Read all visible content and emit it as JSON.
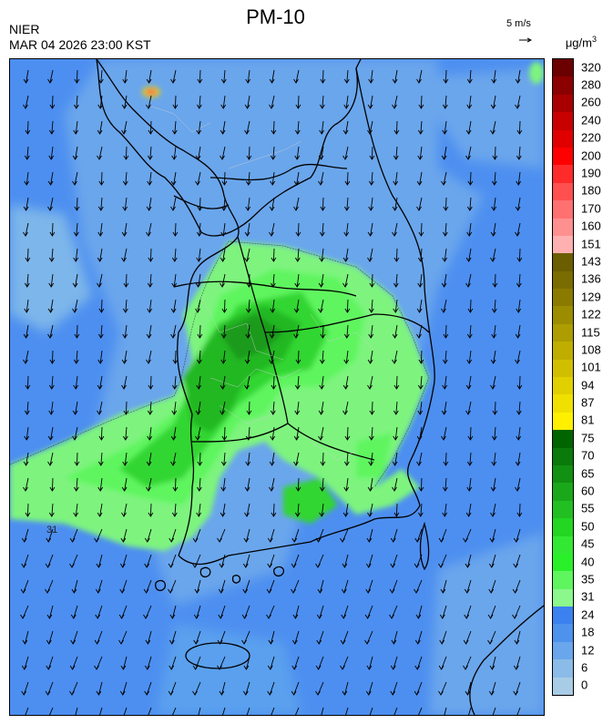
{
  "header": {
    "agency": "NIER",
    "datetime": "MAR 04 2026 23:00 KST",
    "title": "PM-10",
    "vector_scale_label": "5 m/s",
    "unit_base": "μg/m",
    "unit_sup": "3"
  },
  "map": {
    "contour_label": "31",
    "wind_direction": "north-northeasterly (arrows pointing south)",
    "colors": {
      "ocean_low": "#5aa0ee",
      "ocean_mid": "#4d8ff0",
      "land_low": "#7db6ea",
      "haze_light_green": "#7ef47e",
      "haze_green": "#33d633",
      "haze_dark_green": "#1ea31e",
      "border_line": "#000000"
    }
  },
  "legend": {
    "levels": [
      {
        "label": "320",
        "color": "#6b0000"
      },
      {
        "label": "280",
        "color": "#8b0000"
      },
      {
        "label": "260",
        "color": "#a80000"
      },
      {
        "label": "240",
        "color": "#c80000"
      },
      {
        "label": "220",
        "color": "#e00000"
      },
      {
        "label": "200",
        "color": "#ff0000"
      },
      {
        "label": "190",
        "color": "#ff2a2a"
      },
      {
        "label": "180",
        "color": "#ff5050"
      },
      {
        "label": "170",
        "color": "#ff7070"
      },
      {
        "label": "160",
        "color": "#ff9090"
      },
      {
        "label": "151",
        "color": "#ffb0b0"
      },
      {
        "label": "143",
        "color": "#6b5e00"
      },
      {
        "label": "136",
        "color": "#7a6c00"
      },
      {
        "label": "129",
        "color": "#8a7b00"
      },
      {
        "label": "122",
        "color": "#9c8c00"
      },
      {
        "label": "115",
        "color": "#ad9d00"
      },
      {
        "label": "108",
        "color": "#bfae00"
      },
      {
        "label": "101",
        "color": "#d0bf00"
      },
      {
        "label": "94",
        "color": "#e0d000"
      },
      {
        "label": "87",
        "color": "#f0e000"
      },
      {
        "label": "81",
        "color": "#fff000"
      },
      {
        "label": "75",
        "color": "#006400"
      },
      {
        "label": "70",
        "color": "#0a7a0a"
      },
      {
        "label": "65",
        "color": "#119011"
      },
      {
        "label": "60",
        "color": "#1aa81a"
      },
      {
        "label": "55",
        "color": "#22bf22"
      },
      {
        "label": "50",
        "color": "#22d622"
      },
      {
        "label": "45",
        "color": "#33e833"
      },
      {
        "label": "40",
        "color": "#2af02a"
      },
      {
        "label": "35",
        "color": "#5ff55f"
      },
      {
        "label": "31",
        "color": "#8cf78c"
      },
      {
        "label": "24",
        "color": "#3b82f0"
      },
      {
        "label": "18",
        "color": "#4d92ec"
      },
      {
        "label": "12",
        "color": "#6aa6ec"
      },
      {
        "label": "6",
        "color": "#8bbbe8"
      },
      {
        "label": "0",
        "color": "#a8cce6"
      }
    ]
  }
}
